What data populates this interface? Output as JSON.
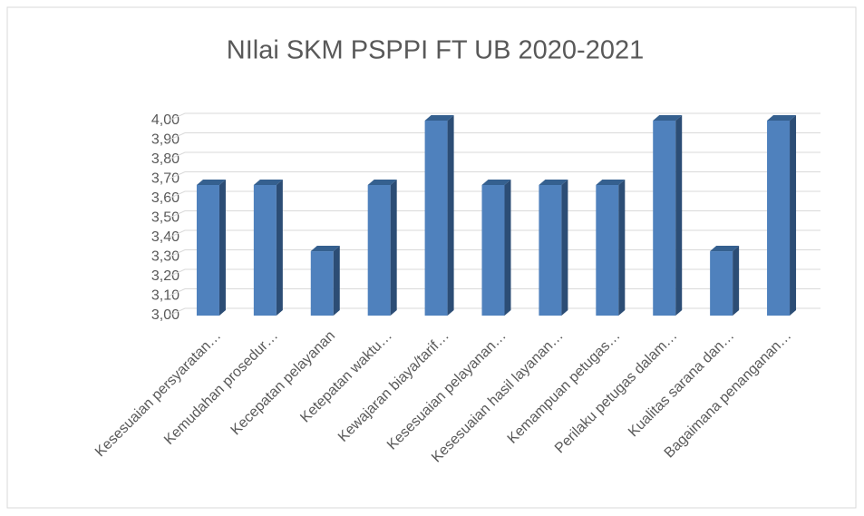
{
  "chart_data": {
    "type": "bar3d",
    "title": "NIlai SKM PSPPI FT UB 2020-2021",
    "categories": [
      "Kesesuaian persyaratan…",
      "Kemudahan prosedur…",
      "Kecepatan pelayanan",
      "Ketepatan waktu…",
      "Kewajaran biaya/tarif…",
      "Kesesuaian pelayanan…",
      "Kesesuaian hasil layanan…",
      "Kemampuan petugas…",
      "Perilaku petugas dalam…",
      "Kualitas sarana dan…",
      "Bagaimana penanganan…"
    ],
    "values": [
      3.67,
      3.67,
      3.33,
      3.67,
      4.0,
      3.67,
      3.67,
      3.67,
      4.0,
      3.33,
      4.0
    ],
    "color": "#4f81bd",
    "ylim": [
      3,
      4
    ],
    "yticks": [
      {
        "value": 3,
        "label": "3,00"
      },
      {
        "value": 3.1,
        "label": "3,10"
      },
      {
        "value": 3.2,
        "label": "3,20"
      },
      {
        "value": 3.3,
        "label": "3,30"
      },
      {
        "value": 3.4,
        "label": "3,40"
      },
      {
        "value": 3.5,
        "label": "3,50"
      },
      {
        "value": 3.6,
        "label": "3,60"
      },
      {
        "value": 3.7,
        "label": "3,70"
      },
      {
        "value": 3.8,
        "label": "3,80"
      },
      {
        "value": 3.9,
        "label": "3,90"
      },
      {
        "value": 4,
        "label": "4,00"
      }
    ],
    "grid": true
  }
}
